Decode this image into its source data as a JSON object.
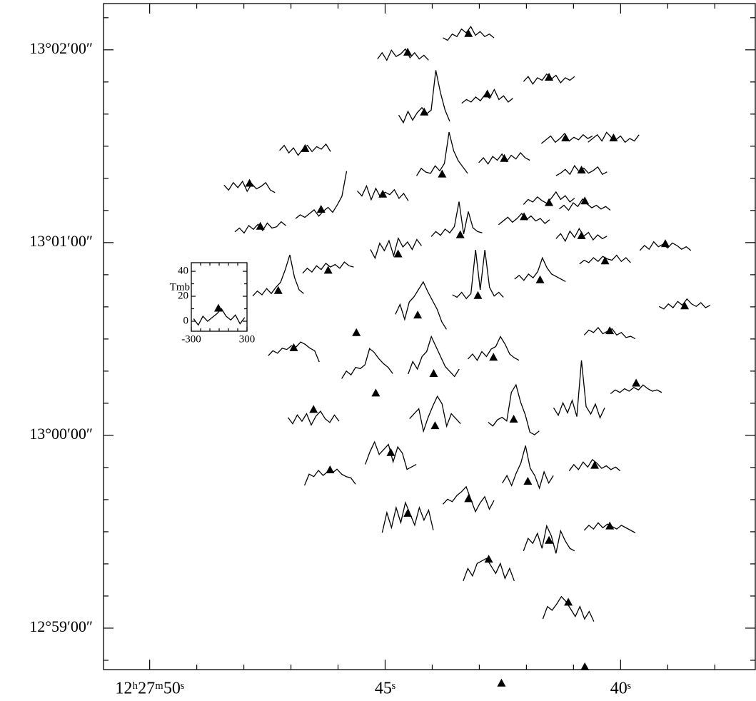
{
  "chart_data": {
    "type": "spectral-map",
    "xlim": [
      50.98,
      37.14
    ],
    "ylim": [
      -72.9,
      134.4
    ],
    "xticks": [
      {
        "value": 50,
        "label": "12ʰ27ᵐ50ˢ"
      },
      {
        "value": 45,
        "label": "45ˢ"
      },
      {
        "value": 40,
        "label": "40ˢ"
      }
    ],
    "xminorticks": [
      49,
      48,
      47,
      46,
      44,
      43,
      42,
      41,
      39,
      38
    ],
    "yticks": [
      {
        "value": 120,
        "label": "13°02′00″"
      },
      {
        "value": 60,
        "label": "13°01′00″"
      },
      {
        "value": 0,
        "label": "13°00′00″"
      },
      {
        "value": -60,
        "label": "12°59′00″"
      }
    ],
    "yminorticks": [
      130,
      110,
      100,
      90,
      80,
      70,
      50,
      40,
      30,
      20,
      10,
      -10,
      -20,
      -30,
      -40,
      -50,
      -70
    ],
    "velocities": [
      -275,
      -225,
      -175,
      -125,
      -75,
      -25,
      25,
      75,
      125,
      175,
      225,
      275
    ],
    "inset": {
      "ylabel": "Tmb",
      "xlim": [
        -300,
        300
      ],
      "ylim": [
        -8,
        46.9
      ],
      "xticks": [
        -300,
        300
      ],
      "yticks": [
        0,
        20,
        40
      ],
      "xminorticks": [
        -200,
        -100,
        0,
        100,
        200
      ],
      "yminorticks": [
        10,
        30
      ],
      "values": [
        2,
        -3,
        4,
        0,
        3,
        6,
        10,
        4,
        1,
        5,
        -2,
        3
      ],
      "marker": [
        -8,
        10
      ]
    },
    "spectra": [
      {
        "ra": 44.62,
        "dec": 115.6,
        "values": [
          4,
          9,
          3,
          11,
          6,
          8,
          12,
          5,
          9,
          4,
          7,
          3
        ],
        "marker": [
          50,
          9
        ]
      },
      {
        "ra": 43.23,
        "dec": 121.8,
        "values": [
          5,
          3,
          8,
          6,
          12,
          9,
          14,
          7,
          10,
          6,
          8,
          5
        ],
        "marker": [
          0,
          8
        ]
      },
      {
        "ra": 41.52,
        "dec": 107.8,
        "values": [
          6,
          10,
          4,
          9,
          7,
          12,
          8,
          11,
          5,
          9,
          7,
          10
        ],
        "marker": [
          0,
          9
        ]
      },
      {
        "ra": 42.83,
        "dec": 102.2,
        "values": [
          3,
          6,
          4,
          8,
          5,
          10,
          7,
          14,
          6,
          9,
          4,
          7
        ],
        "marker": [
          0,
          10
        ]
      },
      {
        "ra": 44.17,
        "dec": 98.9,
        "values": [
          2,
          -4,
          5,
          -2,
          4,
          8,
          3,
          6,
          38,
          20,
          6,
          -3
        ],
        "marker": [
          0,
          4
        ]
      },
      {
        "ra": 46.7,
        "dec": 85.6,
        "values": [
          8,
          12,
          6,
          10,
          4,
          9,
          12,
          7,
          11,
          9,
          13,
          7
        ],
        "marker": [
          0,
          9
        ]
      },
      {
        "ra": 47.88,
        "dec": 74.4,
        "values": [
          9,
          5,
          11,
          7,
          12,
          4,
          10,
          6,
          8,
          11,
          5,
          3
        ],
        "marker": [
          0,
          10
        ]
      },
      {
        "ra": 46.36,
        "dec": 66.7,
        "values": [
          2,
          5,
          3,
          6,
          9,
          4,
          8,
          11,
          7,
          13,
          20,
          40
        ],
        "marker": [
          0,
          9
        ]
      },
      {
        "ra": 47.65,
        "dec": 62.2,
        "values": [
          3,
          6,
          2,
          8,
          5,
          9,
          4,
          10,
          6,
          7,
          11,
          8
        ],
        "marker": [
          0,
          7
        ]
      },
      {
        "ra": 45.05,
        "dec": 72.2,
        "values": [
          10,
          6,
          14,
          3,
          12,
          5,
          9,
          7,
          11,
          4,
          8,
          2
        ],
        "marker": [
          0,
          7
        ]
      },
      {
        "ra": 43.79,
        "dec": 80.0,
        "values": [
          2,
          8,
          5,
          4,
          10,
          6,
          12,
          37,
          22,
          14,
          9,
          4
        ],
        "marker": [
          0,
          3
        ]
      },
      {
        "ra": 42.47,
        "dec": 83.3,
        "values": [
          4,
          8,
          3,
          9,
          6,
          11,
          5,
          10,
          7,
          12,
          8,
          6
        ],
        "marker": [
          0,
          7
        ]
      },
      {
        "ra": 41.14,
        "dec": 88.9,
        "values": [
          5,
          8,
          11,
          6,
          9,
          13,
          7,
          10,
          8,
          12,
          9,
          11
        ],
        "marker": [
          -15,
          9
        ]
      },
      {
        "ra": 40.15,
        "dec": 88.9,
        "values": [
          6,
          9,
          12,
          7,
          14,
          10,
          8,
          11,
          6,
          9,
          7,
          12
        ],
        "marker": [
          0,
          9
        ]
      },
      {
        "ra": 40.83,
        "dec": 78.9,
        "values": [
          5,
          7,
          10,
          6,
          13,
          8,
          11,
          7,
          9,
          12,
          6,
          8
        ],
        "marker": [
          0,
          9
        ]
      },
      {
        "ra": 41.52,
        "dec": 71.1,
        "values": [
          2,
          6,
          4,
          8,
          5,
          3,
          7,
          12,
          6,
          9,
          4,
          7
        ],
        "marker": [
          0,
          3
        ]
      },
      {
        "ra": 40.76,
        "dec": 68.9,
        "values": [
          4,
          7,
          3,
          9,
          6,
          12,
          8,
          5,
          7,
          4,
          6,
          3
        ],
        "marker": [
          0,
          10
        ]
      },
      {
        "ra": 42.05,
        "dec": 64.4,
        "values": [
          3,
          6,
          9,
          5,
          8,
          12,
          7,
          10,
          6,
          8,
          4,
          7
        ],
        "marker": [
          0,
          9
        ]
      },
      {
        "ra": 43.48,
        "dec": 61.1,
        "values": [
          2,
          6,
          3,
          8,
          5,
          10,
          30,
          4,
          22,
          9,
          6,
          5
        ],
        "marker": [
          38,
          3
        ]
      },
      {
        "ra": 44.77,
        "dec": 56.7,
        "values": [
          3,
          -4,
          8,
          2,
          10,
          -2,
          12,
          5,
          9,
          3,
          11,
          6
        ],
        "marker": [
          23,
          -1
        ]
      },
      {
        "ra": 46.21,
        "dec": 48.9,
        "values": [
          4,
          8,
          5,
          10,
          7,
          12,
          9,
          11,
          8,
          13,
          10,
          9
        ],
        "marker": [
          0,
          6
        ]
      },
      {
        "ra": 47.27,
        "dec": 42.2,
        "values": [
          3,
          7,
          4,
          9,
          5,
          10,
          14,
          24,
          36,
          18,
          8,
          5
        ],
        "marker": [
          0,
          7
        ]
      },
      {
        "ra": 40.83,
        "dec": 58.9,
        "values": [
          6,
          10,
          4,
          12,
          7,
          14,
          8,
          11,
          5,
          9,
          6,
          8
        ],
        "marker": [
          0,
          8
        ]
      },
      {
        "ra": 40.33,
        "dec": 52.2,
        "values": [
          3,
          6,
          4,
          8,
          5,
          9,
          7,
          6,
          10,
          5,
          8,
          4
        ],
        "marker": [
          0,
          5
        ]
      },
      {
        "ra": 39.05,
        "dec": 55.6,
        "values": [
          5,
          9,
          6,
          12,
          8,
          10,
          7,
          11,
          9,
          6,
          8,
          5
        ],
        "marker": [
          0,
          10
        ]
      },
      {
        "ra": 38.64,
        "dec": 37.8,
        "values": [
          6,
          4,
          8,
          5,
          10,
          7,
          12,
          8,
          6,
          9,
          5,
          7
        ],
        "marker": [
          0,
          6
        ]
      },
      {
        "ra": 44.24,
        "dec": 40.0,
        "values": [
          -6,
          2,
          -10,
          4,
          8,
          14,
          20,
          12,
          5,
          -2,
          -12,
          -18
        ],
        "marker": [
          -35,
          -7
        ]
      },
      {
        "ra": 43.03,
        "dec": 42.2,
        "values": [
          4,
          2,
          6,
          1,
          5,
          40,
          8,
          40,
          10,
          3,
          6,
          2
        ],
        "marker": [
          0,
          3
        ]
      },
      {
        "ra": 41.71,
        "dec": 46.7,
        "values": [
          5,
          8,
          4,
          9,
          6,
          11,
          22,
          14,
          9,
          7,
          5,
          3
        ],
        "marker": [
          0,
          4
        ]
      },
      {
        "ra": 46.94,
        "dec": 24.4,
        "values": [
          1,
          5,
          3,
          7,
          6,
          9,
          8,
          12,
          10,
          7,
          5,
          -4
        ],
        "marker": [
          0,
          7
        ]
      },
      {
        "ra": 45.38,
        "dec": 20.0,
        "values": [
          -6,
          0,
          -3,
          3,
          2,
          5,
          18,
          15,
          10,
          6,
          3,
          -2
        ],
        "marker": [
          92,
          -18
        ]
      },
      {
        "ra": 43.97,
        "dec": 22.2,
        "values": [
          -8,
          2,
          -4,
          6,
          10,
          22,
          14,
          6,
          -2,
          -6,
          -10,
          -4
        ],
        "marker": [
          0,
          -8
        ]
      },
      {
        "ra": 42.7,
        "dec": 22.2,
        "values": [
          4,
          8,
          3,
          10,
          6,
          12,
          14,
          22,
          16,
          8,
          5,
          3
        ],
        "marker": [
          0,
          5
        ]
      },
      {
        "ra": 40.23,
        "dec": 28.9,
        "values": [
          6,
          10,
          8,
          12,
          7,
          9,
          11,
          6,
          8,
          4,
          5,
          3
        ],
        "marker": [
          0,
          9
        ]
      },
      {
        "ra": 39.67,
        "dec": 12.2,
        "values": [
          2,
          5,
          3,
          6,
          4,
          7,
          5,
          9,
          6,
          4,
          5,
          3
        ],
        "marker": [
          0,
          10
        ]
      },
      {
        "ra": 40.88,
        "dec": 7.8,
        "values": [
          2,
          -4,
          6,
          -2,
          8,
          -5,
          40,
          3,
          -3,
          5,
          -6,
          2
        ]
      },
      {
        "ra": 46.52,
        "dec": 4.4,
        "values": [
          3,
          -2,
          5,
          0,
          6,
          -3,
          4,
          8,
          2,
          -1,
          5,
          0
        ],
        "marker": [
          0,
          9
        ]
      },
      {
        "ra": 43.94,
        "dec": 4.4,
        "values": [
          2,
          6,
          10,
          -8,
          3,
          12,
          20,
          14,
          -4,
          6,
          2,
          -2
        ],
        "marker": [
          0,
          -4
        ]
      },
      {
        "ra": 42.27,
        "dec": 3.3,
        "values": [
          2,
          -1,
          4,
          6,
          3,
          26,
          32,
          18,
          8,
          -6,
          -8,
          -5
        ],
        "marker": [
          0,
          4
        ]
      },
      {
        "ra": 44.88,
        "dec": -6.7,
        "values": [
          -6,
          4,
          12,
          2,
          6,
          10,
          -4,
          8,
          3,
          -10,
          -8,
          -6
        ],
        "marker": [
          0,
          3
        ]
      },
      {
        "ra": 46.17,
        "dec": -14.4,
        "values": [
          -3,
          6,
          4,
          9,
          5,
          8,
          7,
          10,
          6,
          4,
          3,
          -2
        ],
        "marker": [
          0,
          9
        ]
      },
      {
        "ra": 41.97,
        "dec": -13.3,
        "values": [
          -4,
          2,
          -6,
          4,
          12,
          26,
          8,
          2,
          -8,
          5,
          -4,
          2
        ],
        "marker": [
          0,
          -3
        ]
      },
      {
        "ra": 40.55,
        "dec": -12.2,
        "values": [
          3,
          8,
          4,
          10,
          6,
          12,
          9,
          5,
          7,
          4,
          6,
          3
        ],
        "marker": [
          0,
          7
        ]
      },
      {
        "ra": 44.52,
        "dec": -25.6,
        "values": [
          -12,
          4,
          -8,
          8,
          -4,
          12,
          3,
          -6,
          8,
          -2,
          6,
          -10
        ],
        "marker": [
          0,
          3
        ]
      },
      {
        "ra": 43.23,
        "dec": -22.2,
        "values": [
          2,
          6,
          4,
          9,
          12,
          16,
          6,
          -4,
          3,
          8,
          -2,
          5
        ],
        "marker": [
          0,
          6
        ]
      },
      {
        "ra": 41.52,
        "dec": -34.4,
        "values": [
          -4,
          6,
          2,
          10,
          -2,
          16,
          8,
          -6,
          12,
          4,
          -2,
          -4
        ],
        "marker": [
          0,
          4
        ]
      },
      {
        "ra": 40.23,
        "dec": -31.1,
        "values": [
          4,
          8,
          5,
          10,
          6,
          9,
          7,
          5,
          8,
          6,
          4,
          2
        ],
        "marker": [
          0,
          7
        ]
      },
      {
        "ra": 42.8,
        "dec": -42.2,
        "values": [
          -8,
          2,
          -4,
          6,
          8,
          10,
          4,
          -2,
          6,
          -6,
          2,
          -8
        ],
        "marker": [
          0,
          9
        ]
      },
      {
        "ra": 41.11,
        "dec": -55.6,
        "values": [
          -4,
          6,
          3,
          8,
          14,
          10,
          4,
          -2,
          6,
          -4,
          2,
          -6
        ],
        "marker": [
          0,
          9
        ]
      }
    ],
    "markers": [
      [
        45.61,
        31.8
      ],
      [
        42.53,
        -77.3
      ],
      [
        40.76,
        -72.2
      ]
    ]
  }
}
